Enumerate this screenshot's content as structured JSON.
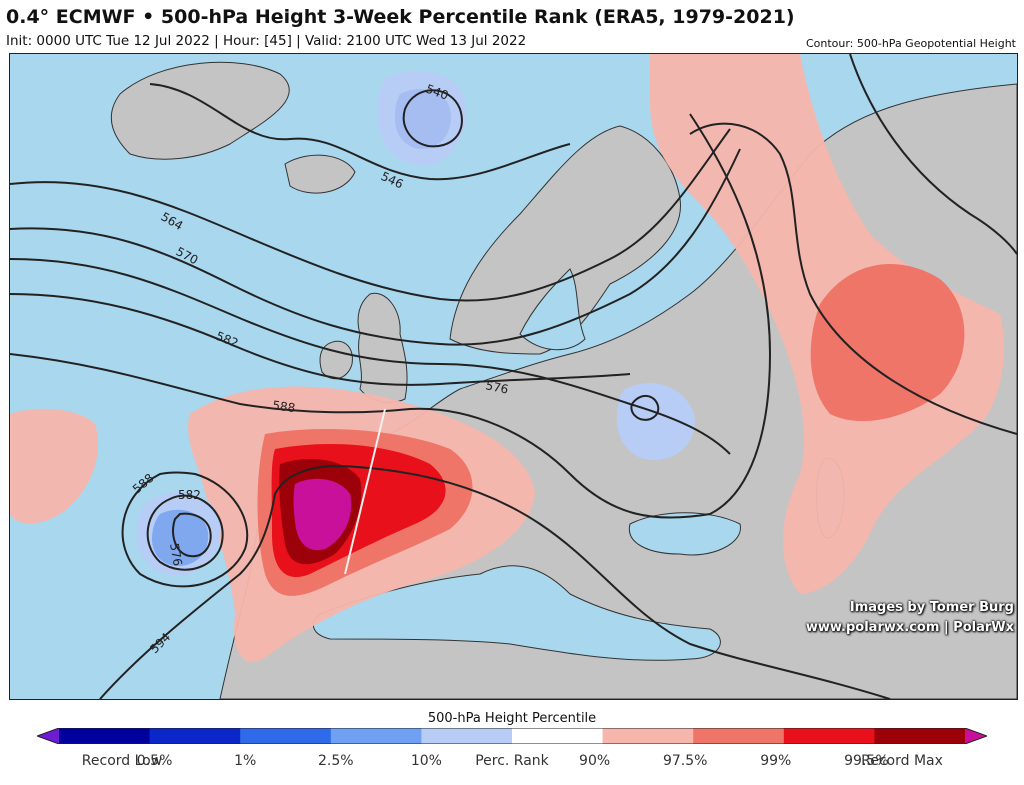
{
  "header": {
    "title": "0.4° ECMWF • 500-hPa Height 3-Week Percentile Rank (ERA5, 1979-2021)",
    "subtitle": "Init: 0000 UTC Tue 12 Jul 2022 | Hour: [45] | Valid: 2100 UTC Wed 13 Jul 2022",
    "contour_note": "Contour: 500-hPa Geopotential Height"
  },
  "map": {
    "contour_labels": [
      "540",
      "546",
      "564",
      "570",
      "582",
      "588",
      "576",
      "588",
      "582",
      "576",
      "594"
    ],
    "credits": {
      "line1": "Images by Tomer Burg",
      "line2": "www.polarwx.com | PolarWx"
    }
  },
  "colorbar": {
    "title": "500-hPa Height Percentile",
    "ticks": [
      "Record Low",
      "0.5%",
      "1%",
      "2.5%",
      "10%",
      "Perc. Rank",
      "90%",
      "97.5%",
      "99%",
      "99.5%",
      "Record Max"
    ],
    "colors": [
      "#6e1bd6",
      "#00009c",
      "#0c27c9",
      "#2f6be8",
      "#6fa0f2",
      "#b8cdf6",
      "#ffffff",
      "#f6b6ac",
      "#ef7569",
      "#e8101a",
      "#9c0008",
      "#c8109a"
    ]
  }
}
